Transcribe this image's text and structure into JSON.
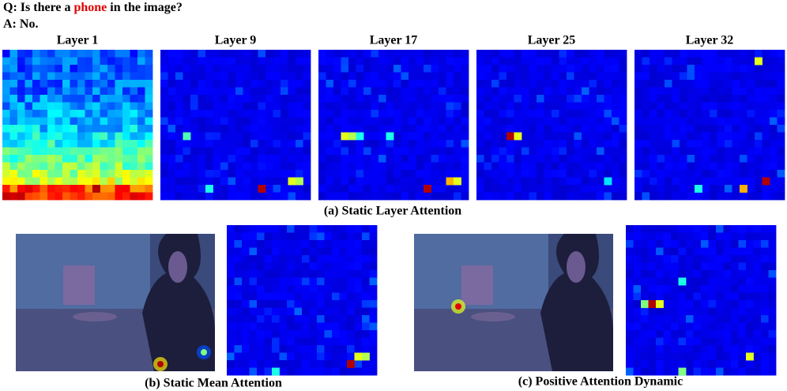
{
  "question": {
    "prefix": "Q:",
    "before": "Is there a",
    "highlight": "phone",
    "after": "in the image?"
  },
  "answer": {
    "prefix": "A:",
    "text": "No."
  },
  "layers": [
    "Layer 1",
    "Layer 9",
    "Layer 17",
    "Layer 25",
    "Layer 32"
  ],
  "captions": {
    "a": "(a) Static Layer Attention",
    "b": "(b) Static Mean Attention",
    "c": "(c) Positive Attention Dynamic"
  }
}
